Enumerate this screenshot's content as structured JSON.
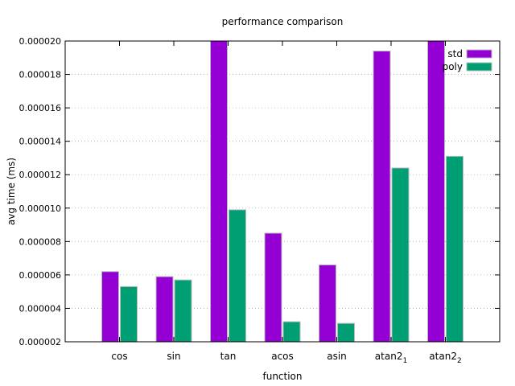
{
  "chart_data": {
    "type": "bar",
    "title": "performance comparison",
    "xlabel": "function",
    "ylabel": "avg time (ms)",
    "ylim": [
      2e-06,
      2e-05
    ],
    "yticks": [
      "0.000002",
      "0.000004",
      "0.000006",
      "0.000008",
      "0.000010",
      "0.000012",
      "0.000014",
      "0.000016",
      "0.000018",
      "0.000020"
    ],
    "grid": "horizontal dotted",
    "legend": "top-right",
    "categories": [
      {
        "base": "cos",
        "sub": ""
      },
      {
        "base": "sin",
        "sub": ""
      },
      {
        "base": "tan",
        "sub": ""
      },
      {
        "base": "acos",
        "sub": ""
      },
      {
        "base": "asin",
        "sub": ""
      },
      {
        "base": "atan2",
        "sub": "1"
      },
      {
        "base": "atan2",
        "sub": "2"
      }
    ],
    "series": [
      {
        "name": "std",
        "color": "#9400d3",
        "values": [
          6.2e-06,
          5.9e-06,
          2e-05,
          8.5e-06,
          6.6e-06,
          1.94e-05,
          2e-05
        ]
      },
      {
        "name": "poly",
        "color": "#009e73",
        "values": [
          5.3e-06,
          5.7e-06,
          9.9e-06,
          3.2e-06,
          3.1e-06,
          1.24e-05,
          1.31e-05
        ]
      }
    ]
  }
}
